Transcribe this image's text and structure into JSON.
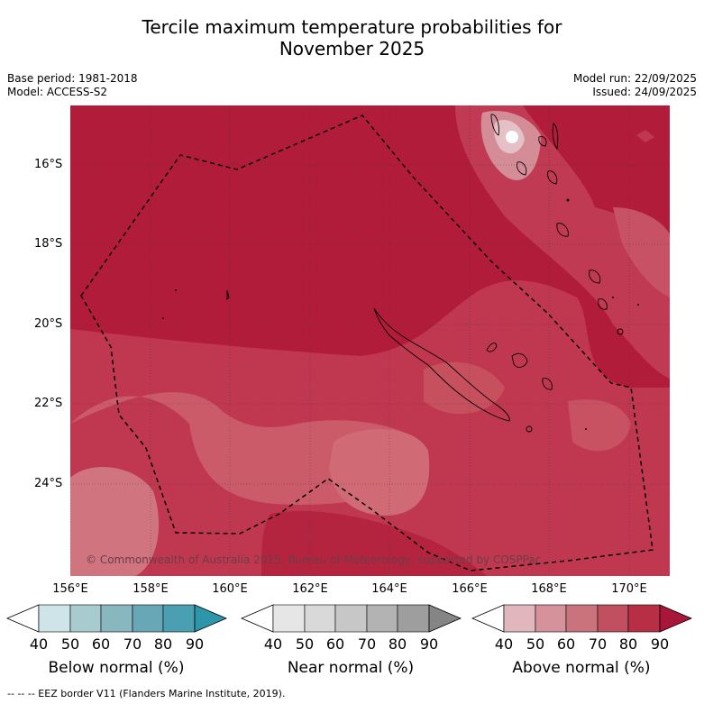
{
  "title_line1": "Tercile maximum temperature probabilities for",
  "title_line2": "November 2025",
  "base_period": "Base period: 1981-2018",
  "model": "Model: ACCESS-S2",
  "model_run": "Model run: 22/09/2025",
  "issued": "Issued: 24/09/2025",
  "lat_labels": [
    "16°S",
    "18°S",
    "20°S",
    "22°S",
    "24°S"
  ],
  "lon_labels": [
    "156°E",
    "158°E",
    "160°E",
    "162°E",
    "164°E",
    "166°E",
    "168°E",
    "170°E"
  ],
  "copyright": "© Commonwealth of Australia 2025, Bureau of Meteorology, supported by COSPPac",
  "colorbars": [
    {
      "title": "Below normal (%)",
      "ticks": [
        "40",
        "50",
        "60",
        "70",
        "80",
        "90"
      ],
      "colors": [
        "#ffffff",
        "#cfe4e8",
        "#a8cbd0",
        "#89b7c0",
        "#68a8b6",
        "#4aa0b2",
        "#2e96ab"
      ]
    },
    {
      "title": "Near normal (%)",
      "ticks": [
        "40",
        "50",
        "60",
        "70",
        "80",
        "90"
      ],
      "colors": [
        "#ffffff",
        "#e6e6e6",
        "#d9d9d9",
        "#c7c7c7",
        "#b3b3b3",
        "#9e9e9e",
        "#858585"
      ]
    },
    {
      "title": "Above normal (%)",
      "ticks": [
        "40",
        "50",
        "60",
        "70",
        "80",
        "90"
      ],
      "colors": [
        "#ffffff",
        "#e2b6bd",
        "#d5929b",
        "#cb737d",
        "#c0505f",
        "#b72e45",
        "#a8163a"
      ]
    }
  ],
  "footer": "--  --  -- EEZ border V11 (Flanders Marine Institute, 2019)."
}
